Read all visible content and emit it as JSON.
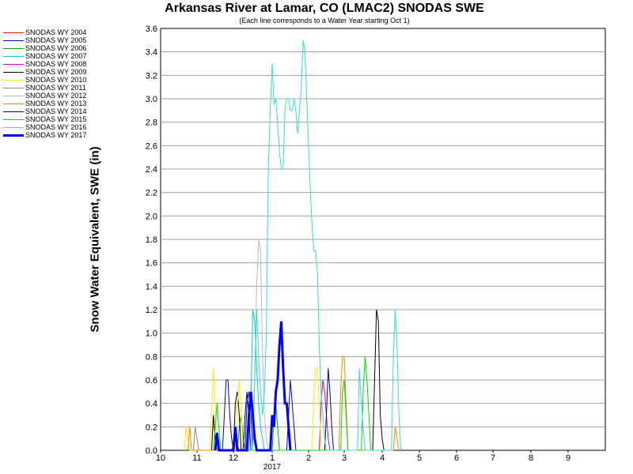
{
  "chart_data": {
    "type": "line",
    "title": "Arkansas River at Lamar, CO (LMAC2) SNODAS SWE",
    "subtitle": "(Each line corresponds to a Water Year starting Oct 1)",
    "ylabel": "Snow Water Equivalent, SWE (in)",
    "xlabel": "",
    "ylim": [
      0,
      3.6
    ],
    "y_ticks": [
      "0.0",
      "0.2",
      "0.4",
      "0.6",
      "0.8",
      "1.0",
      "1.2",
      "1.4",
      "1.6",
      "1.8",
      "2.0",
      "2.2",
      "2.4",
      "2.6",
      "2.8",
      "3.0",
      "3.2",
      "3.4",
      "3.6"
    ],
    "x_ticks": [
      "10",
      "11",
      "12",
      "1",
      "2",
      "3",
      "4",
      "5",
      "6",
      "7",
      "8",
      "9"
    ],
    "x_year_label": "2017",
    "grid": true,
    "legend_position": "left",
    "series": [
      {
        "name": "SNODAS WY 2004",
        "color": "#ff0000",
        "points": [
          [
            1.95,
            0
          ],
          [
            2.0,
            0.05
          ],
          [
            2.05,
            0.1
          ],
          [
            2.1,
            0.05
          ],
          [
            2.15,
            0
          ]
        ]
      },
      {
        "name": "SNODAS WY 2005",
        "color": "#0000cc",
        "points": [
          [
            1.7,
            0
          ],
          [
            1.75,
            0.3
          ],
          [
            1.8,
            0.6
          ],
          [
            1.85,
            0.6
          ],
          [
            1.9,
            0.3
          ],
          [
            1.95,
            0.1
          ],
          [
            2.0,
            0
          ],
          [
            2.3,
            0
          ],
          [
            2.35,
            0.4
          ],
          [
            2.4,
            0.5
          ],
          [
            2.45,
            0.3
          ],
          [
            2.5,
            0
          ],
          [
            3.4,
            0
          ],
          [
            3.45,
            0.3
          ],
          [
            3.5,
            0.6
          ],
          [
            3.55,
            0.4
          ],
          [
            3.6,
            0.2
          ],
          [
            3.65,
            0
          ]
        ]
      },
      {
        "name": "SNODAS WY 2006",
        "color": "#00aa00",
        "points": [
          [
            2.1,
            0
          ],
          [
            2.15,
            0.2
          ],
          [
            2.2,
            0.3
          ],
          [
            2.25,
            0.1
          ],
          [
            2.3,
            0
          ],
          [
            3.0,
            0
          ],
          [
            3.05,
            0.3
          ],
          [
            3.1,
            0.4
          ],
          [
            3.15,
            0.2
          ],
          [
            3.2,
            0
          ]
        ]
      },
      {
        "name": "SNODAS WY 2007",
        "color": "#00cccc",
        "points": [
          [
            2.4,
            0
          ],
          [
            2.45,
            0.4
          ],
          [
            2.5,
            1.2
          ],
          [
            2.55,
            1.1
          ],
          [
            2.6,
            0.7
          ],
          [
            2.65,
            0.4
          ],
          [
            2.7,
            0.2
          ],
          [
            2.75,
            0.1
          ],
          [
            2.8,
            0
          ]
        ]
      },
      {
        "name": "SNODAS WY 2008",
        "color": "#cc00cc",
        "points": [
          [
            4.3,
            0
          ],
          [
            4.35,
            0.4
          ],
          [
            4.4,
            0.6
          ],
          [
            4.45,
            0.5
          ],
          [
            4.5,
            0.3
          ],
          [
            4.55,
            0.1
          ],
          [
            4.6,
            0
          ]
        ]
      },
      {
        "name": "SNODAS WY 2009",
        "color": "#000000",
        "points": [
          [
            1.4,
            0
          ],
          [
            1.45,
            0.3
          ],
          [
            1.5,
            0.1
          ],
          [
            1.55,
            0
          ],
          [
            2.0,
            0
          ],
          [
            2.05,
            0.4
          ],
          [
            2.1,
            0.5
          ],
          [
            2.15,
            0.3
          ],
          [
            2.2,
            0
          ],
          [
            5.75,
            0
          ],
          [
            5.8,
            0.6
          ],
          [
            5.85,
            1.2
          ],
          [
            5.9,
            1.1
          ],
          [
            5.95,
            0.3
          ],
          [
            6.0,
            0.1
          ],
          [
            6.05,
            0
          ]
        ]
      },
      {
        "name": "SNODAS WY 2010",
        "color": "#ffee00",
        "points": [
          [
            0.65,
            0
          ],
          [
            0.7,
            0.2
          ],
          [
            0.75,
            0.1
          ],
          [
            0.8,
            0
          ],
          [
            1.35,
            0
          ],
          [
            1.4,
            0.3
          ],
          [
            1.45,
            0.7
          ],
          [
            1.5,
            0.4
          ],
          [
            1.55,
            0
          ],
          [
            2.05,
            0
          ],
          [
            2.1,
            0.4
          ],
          [
            2.15,
            0.6
          ],
          [
            2.2,
            0.3
          ],
          [
            2.25,
            0
          ],
          [
            4.1,
            0
          ],
          [
            4.15,
            0.5
          ],
          [
            4.2,
            0.7
          ],
          [
            4.25,
            0.7
          ],
          [
            4.3,
            0.4
          ],
          [
            4.35,
            0
          ]
        ]
      },
      {
        "name": "SNODAS WY 2011",
        "color": "#888888",
        "points": [
          [
            0.9,
            0
          ],
          [
            0.95,
            0.2
          ],
          [
            1.0,
            0.1
          ],
          [
            1.05,
            0
          ]
        ]
      },
      {
        "name": "SNODAS WY 2012",
        "color": "#bbbbbb",
        "points": [
          [
            2.5,
            0
          ],
          [
            2.55,
            0.6
          ],
          [
            2.6,
            1.4
          ],
          [
            2.65,
            1.8
          ],
          [
            2.7,
            1.7
          ],
          [
            2.75,
            0.8
          ],
          [
            2.8,
            0.3
          ],
          [
            2.85,
            0.1
          ],
          [
            2.9,
            0
          ]
        ]
      },
      {
        "name": "SNODAS WY 2013",
        "color": "#ff8800",
        "points": [
          [
            0.75,
            0
          ],
          [
            0.8,
            0.2
          ],
          [
            0.85,
            0
          ],
          [
            4.85,
            0
          ],
          [
            4.9,
            0.5
          ],
          [
            4.95,
            0.8
          ],
          [
            5.0,
            0.8
          ],
          [
            5.05,
            0.4
          ],
          [
            5.1,
            0
          ],
          [
            6.3,
            0
          ],
          [
            6.35,
            0.2
          ],
          [
            6.4,
            0.1
          ],
          [
            6.45,
            0
          ]
        ]
      },
      {
        "name": "SNODAS WY 2014",
        "color": "#000088",
        "points": [
          [
            2.25,
            0
          ],
          [
            2.3,
            0.3
          ],
          [
            2.35,
            0.5
          ],
          [
            2.4,
            0.3
          ],
          [
            2.45,
            0
          ],
          [
            4.45,
            0
          ],
          [
            4.5,
            0.3
          ],
          [
            4.55,
            0.7
          ],
          [
            4.6,
            0.5
          ],
          [
            4.65,
            0.2
          ],
          [
            4.7,
            0
          ]
        ]
      },
      {
        "name": "SNODAS WY 2015",
        "color": "#00dd00",
        "points": [
          [
            1.45,
            0
          ],
          [
            1.5,
            0.2
          ],
          [
            1.55,
            0.4
          ],
          [
            1.6,
            0.2
          ],
          [
            1.65,
            0
          ],
          [
            4.9,
            0
          ],
          [
            4.95,
            0.5
          ],
          [
            5.0,
            0.6
          ],
          [
            5.05,
            0.3
          ],
          [
            5.1,
            0
          ],
          [
            5.45,
            0
          ],
          [
            5.5,
            0.5
          ],
          [
            5.55,
            0.8
          ],
          [
            5.6,
            0.6
          ],
          [
            5.65,
            0.3
          ],
          [
            5.7,
            0
          ]
        ]
      },
      {
        "name": "SNODAS WY 2016",
        "color": "#33dddd",
        "points": [
          [
            2.5,
            0
          ],
          [
            2.55,
            0.6
          ],
          [
            2.6,
            1.2
          ],
          [
            2.65,
            0.8
          ],
          [
            2.7,
            0.5
          ],
          [
            2.75,
            0.3
          ],
          [
            2.8,
            0.5
          ],
          [
            2.85,
            1.0
          ],
          [
            2.9,
            2.4
          ],
          [
            2.95,
            2.9
          ],
          [
            3.0,
            3.3
          ],
          [
            3.05,
            2.95
          ],
          [
            3.1,
            3.0
          ],
          [
            3.15,
            2.8
          ],
          [
            3.2,
            2.55
          ],
          [
            3.25,
            2.4
          ],
          [
            3.3,
            2.4
          ],
          [
            3.35,
            2.9
          ],
          [
            3.4,
            3.0
          ],
          [
            3.45,
            3.0
          ],
          [
            3.5,
            2.9
          ],
          [
            3.55,
            2.9
          ],
          [
            3.6,
            3.0
          ],
          [
            3.65,
            2.9
          ],
          [
            3.7,
            2.7
          ],
          [
            3.75,
            2.9
          ],
          [
            3.8,
            3.1
          ],
          [
            3.85,
            3.5
          ],
          [
            3.9,
            3.4
          ],
          [
            3.95,
            3.0
          ],
          [
            4.0,
            2.6
          ],
          [
            4.05,
            2.2
          ],
          [
            4.1,
            1.9
          ],
          [
            4.15,
            1.7
          ],
          [
            4.2,
            1.7
          ],
          [
            4.25,
            1.5
          ],
          [
            4.3,
            0.9
          ],
          [
            4.35,
            0.5
          ],
          [
            4.4,
            0.3
          ],
          [
            4.45,
            0.1
          ],
          [
            4.5,
            0
          ],
          [
            5.35,
            0
          ],
          [
            5.4,
            0.7
          ],
          [
            5.45,
            0.4
          ],
          [
            5.5,
            0.2
          ],
          [
            5.55,
            0
          ],
          [
            6.25,
            0
          ],
          [
            6.3,
            0.8
          ],
          [
            6.35,
            1.2
          ],
          [
            6.4,
            0.9
          ],
          [
            6.45,
            0.3
          ],
          [
            6.5,
            0
          ]
        ]
      },
      {
        "name": "SNODAS WY 2017",
        "color": "#0000ff",
        "points": [
          [
            1.5,
            0
          ],
          [
            1.55,
            0.15
          ],
          [
            1.6,
            0
          ],
          [
            2.0,
            0
          ],
          [
            2.05,
            0.2
          ],
          [
            2.1,
            0
          ],
          [
            2.35,
            0
          ],
          [
            2.4,
            0.3
          ],
          [
            2.45,
            0.5
          ],
          [
            2.5,
            0.3
          ],
          [
            2.55,
            0.1
          ],
          [
            2.6,
            0
          ],
          [
            2.95,
            0
          ],
          [
            3.0,
            0.3
          ],
          [
            3.05,
            0.2
          ],
          [
            3.1,
            0.5
          ],
          [
            3.15,
            0.6
          ],
          [
            3.2,
            0.9
          ],
          [
            3.25,
            1.1
          ],
          [
            3.3,
            0.7
          ],
          [
            3.35,
            0.4
          ],
          [
            3.4,
            0.4
          ],
          [
            3.45,
            0.2
          ],
          [
            3.5,
            0
          ]
        ]
      }
    ]
  }
}
